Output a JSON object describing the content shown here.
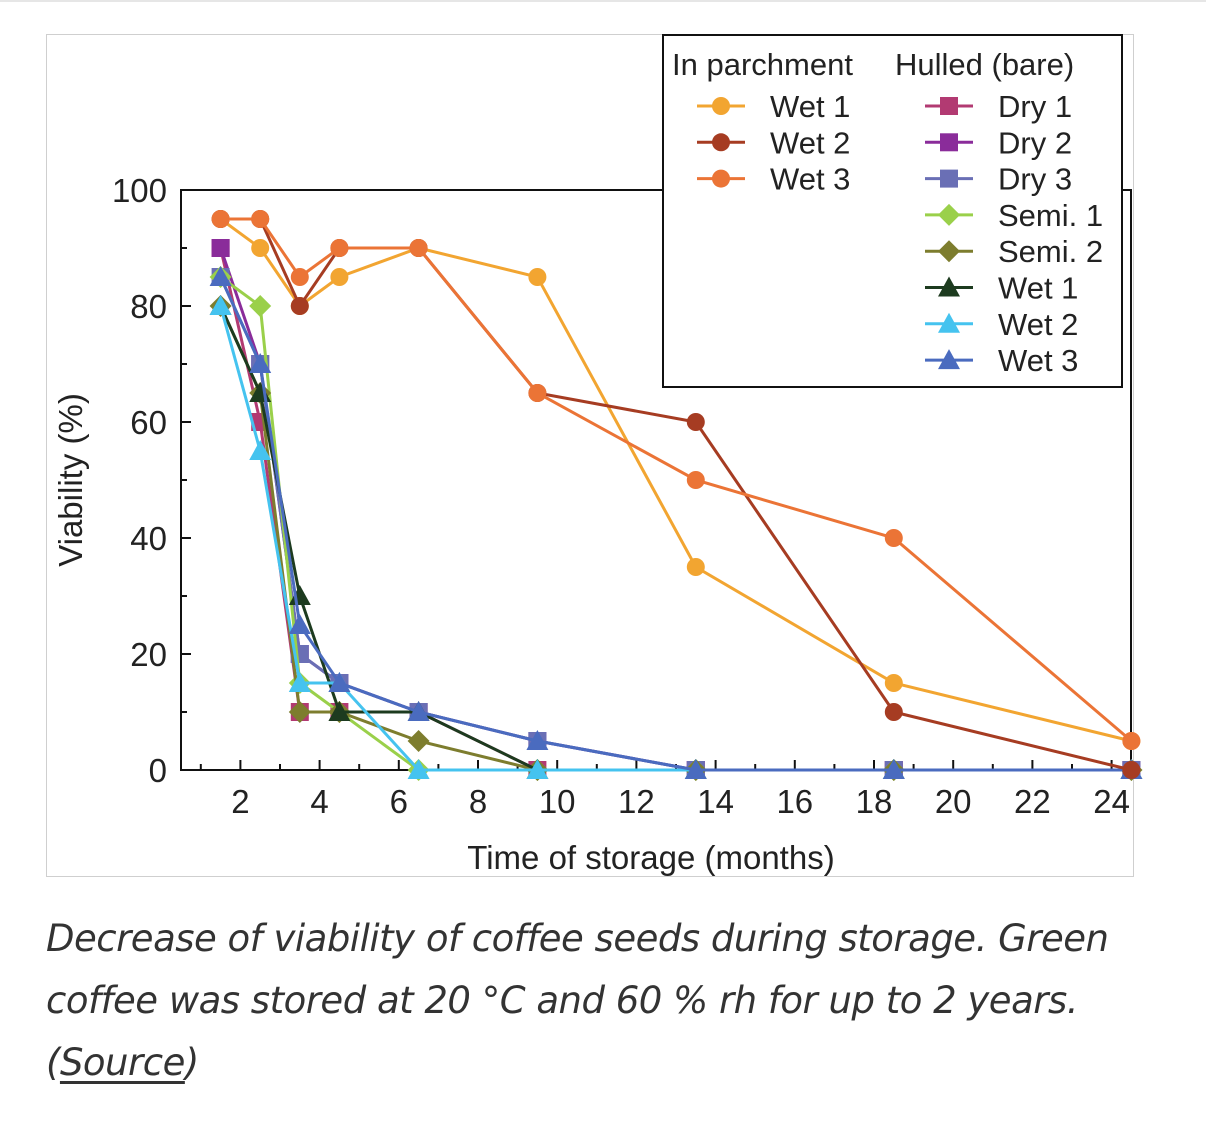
{
  "chart_data": {
    "type": "line",
    "xlabel": "Time of storage (months)",
    "ylabel": "Viability (%)",
    "xlim": [
      0,
      24.5
    ],
    "ylim": [
      0,
      100
    ],
    "xticks": [
      "2",
      "4",
      "6",
      "8",
      "10",
      "12",
      "14",
      "16",
      "18",
      "20",
      "22",
      "24"
    ],
    "yticks": [
      "0",
      "20",
      "40",
      "60",
      "80",
      "100"
    ],
    "grid": false,
    "legend": {
      "placement": "top-right",
      "group_headers": [
        "In parchment",
        "Hulled  (bare)"
      ]
    },
    "series": [
      {
        "name": "Wet 1",
        "group": "In parchment",
        "marker": "circle",
        "color": "#f2a531",
        "x": [
          1.5,
          2.5,
          3.5,
          4.5,
          6.5,
          9.5,
          13.5,
          18.5,
          24.5
        ],
        "y": [
          95,
          90,
          80,
          85,
          90,
          85,
          35,
          15,
          5
        ]
      },
      {
        "name": "Wet 2",
        "group": "In parchment",
        "marker": "circle",
        "color": "#a63c22",
        "x": [
          1.5,
          2.5,
          3.5,
          4.5,
          6.5,
          9.5,
          13.5,
          18.5,
          24.5
        ],
        "y": [
          95,
          95,
          80,
          90,
          90,
          65,
          60,
          10,
          0
        ]
      },
      {
        "name": "Wet 3",
        "group": "In parchment",
        "marker": "circle",
        "color": "#eb7436",
        "x": [
          1.5,
          2.5,
          3.5,
          4.5,
          6.5,
          9.5,
          13.5,
          18.5,
          24.5
        ],
        "y": [
          95,
          95,
          85,
          90,
          90,
          65,
          50,
          40,
          5
        ]
      },
      {
        "name": "Dry 1",
        "group": "Hulled (bare)",
        "marker": "square",
        "color": "#b23a72",
        "x": [
          1.5,
          2.5,
          3.5,
          4.5,
          6.5,
          9.5,
          13.5,
          18.5,
          24.5
        ],
        "y": [
          90,
          60,
          10,
          10,
          10,
          0,
          0,
          0,
          0
        ]
      },
      {
        "name": "Dry 2",
        "group": "Hulled (bare)",
        "marker": "square",
        "color": "#8a2c9a",
        "x": [
          1.5,
          2.5,
          3.5,
          4.5,
          6.5,
          9.5,
          13.5,
          18.5,
          24.5
        ],
        "y": [
          90,
          70,
          20,
          15,
          10,
          5,
          0,
          0,
          0
        ]
      },
      {
        "name": "Dry 3",
        "group": "Hulled (bare)",
        "marker": "square",
        "color": "#6a6fb5",
        "x": [
          1.5,
          2.5,
          3.5,
          4.5,
          6.5,
          9.5,
          13.5,
          18.5,
          24.5
        ],
        "y": [
          85,
          70,
          20,
          15,
          10,
          5,
          0,
          0,
          0
        ]
      },
      {
        "name": "Semi. 1",
        "group": "Hulled (bare)",
        "marker": "diamond",
        "color": "#9ad04a",
        "x": [
          1.5,
          2.5,
          3.5,
          4.5,
          6.5,
          9.5,
          13.5,
          18.5,
          24.5
        ],
        "y": [
          85,
          80,
          15,
          10,
          0,
          0,
          0,
          0,
          0
        ]
      },
      {
        "name": "Semi. 2",
        "group": "Hulled (bare)",
        "marker": "diamond",
        "color": "#7d7d2e",
        "x": [
          1.5,
          2.5,
          3.5,
          4.5,
          6.5,
          9.5,
          13.5,
          18.5,
          24.5
        ],
        "y": [
          80,
          65,
          10,
          10,
          5,
          0,
          0,
          0,
          0
        ]
      },
      {
        "name": "Wet 1",
        "group": "Hulled (bare)",
        "marker": "triangle",
        "color": "#1d3b1f",
        "x": [
          1.5,
          2.5,
          3.5,
          4.5,
          6.5,
          9.5,
          13.5,
          18.5,
          24.5
        ],
        "y": [
          80,
          65,
          30,
          10,
          10,
          0,
          0,
          0,
          0
        ]
      },
      {
        "name": "Wet 2",
        "group": "Hulled (bare)",
        "marker": "triangle",
        "color": "#45c3ef",
        "x": [
          1.5,
          2.5,
          3.5,
          4.5,
          6.5,
          9.5,
          13.5,
          18.5,
          24.5
        ],
        "y": [
          80,
          55,
          15,
          15,
          0,
          0,
          0,
          0,
          0
        ]
      },
      {
        "name": "Wet 3",
        "group": "Hulled (bare)",
        "marker": "triangle",
        "color": "#4a6bbf",
        "x": [
          1.5,
          2.5,
          3.5,
          4.5,
          6.5,
          9.5,
          13.5,
          18.5,
          24.5
        ],
        "y": [
          85,
          70,
          25,
          15,
          10,
          5,
          0,
          0,
          0
        ]
      }
    ]
  },
  "caption": {
    "text": "Decrease of viability of coffee seeds during storage. Green coffee was stored at 20 °C and 60 % rh for up to 2 years. (",
    "link_label": "Source",
    "suffix": ")"
  }
}
